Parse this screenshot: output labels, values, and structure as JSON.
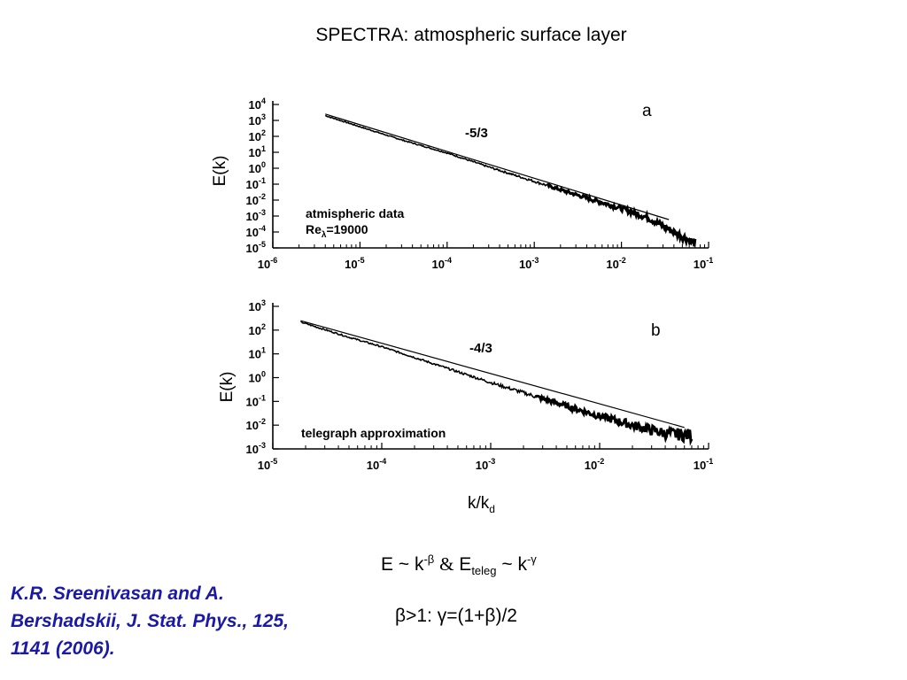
{
  "title": "SPECTRA: atmospheric surface layer",
  "citation": "K.R. Sreenivasan and A. Bershadskii, J. Stat. Phys., 125, 1141 (2006).",
  "xaxis": {
    "main": "k/k",
    "sub": "d"
  },
  "formula_line1": "E ~ k⁻ᵝ  &  Eₜₑₗₑᵍ ~ k⁻ᵞ",
  "formula_line1_parts": {
    "lhs": "E ~ k",
    "lhs_exp": "-β",
    "amp": "&",
    "rhs": "E",
    "rhs_sub": "teleg",
    "rhs_tail": " ~ k",
    "rhs_exp": "-γ"
  },
  "formula_line2": "β>1:  γ=(1+β)/2",
  "colors": {
    "citation": "#1a1aa6",
    "curve": "#000000"
  },
  "chart_data": [
    {
      "type": "line",
      "panel": "a",
      "ylabel": "E(k)",
      "xscale": "log",
      "yscale": "log",
      "xlim": [
        1e-06,
        0.1
      ],
      "ylim": [
        1e-05,
        10000.0
      ],
      "x_ticks": [
        "10-6",
        "10-5",
        "10-4",
        "10-3",
        "10-2",
        "10-1"
      ],
      "y_ticks": [
        "10-5",
        "10-4",
        "10-3",
        "10-2",
        "10-1",
        "100",
        "101",
        "102",
        "103",
        "104"
      ],
      "annotations": [
        "atmispheric data",
        "Reλ=19000",
        "-5/3",
        "a"
      ],
      "series": [
        {
          "x": [
            4e-06,
            1e-05,
            3e-05,
            0.0001,
            0.0003,
            0.001,
            0.003,
            0.01,
            0.02,
            0.04,
            0.07
          ],
          "y": [
            2000,
            400,
            60,
            9,
            1.2,
            0.15,
            0.022,
            0.003,
            0.0008,
            0.0001,
            2e-05
          ]
        },
        {
          "fit_slope": "-5/3",
          "x": [
            4e-06,
            0.035
          ],
          "y": [
            2500,
            0.0006
          ]
        }
      ]
    },
    {
      "type": "line",
      "panel": "b",
      "ylabel": "E(k)",
      "xscale": "log",
      "yscale": "log",
      "xlim": [
        1e-05,
        0.1
      ],
      "ylim": [
        0.001,
        1000.0
      ],
      "x_ticks": [
        "10-5",
        "10-4",
        "10-3",
        "10-2",
        "10-1"
      ],
      "y_ticks": [
        "10-3",
        "10-2",
        "10-1",
        "100",
        "101",
        "102",
        "103"
      ],
      "annotations": [
        "telegraph approximation",
        "-4/3",
        "b"
      ],
      "series": [
        {
          "x": [
            1.8e-05,
            5e-05,
            0.0001,
            0.0003,
            0.001,
            0.003,
            0.01,
            0.02,
            0.04,
            0.07
          ],
          "y": [
            220,
            50,
            20,
            3.8,
            0.62,
            0.13,
            0.024,
            0.01,
            0.0045,
            0.0037
          ]
        },
        {
          "fit_slope": "-4/3",
          "x": [
            1.8e-05,
            0.06
          ],
          "y": [
            250,
            0.008
          ]
        }
      ]
    }
  ]
}
